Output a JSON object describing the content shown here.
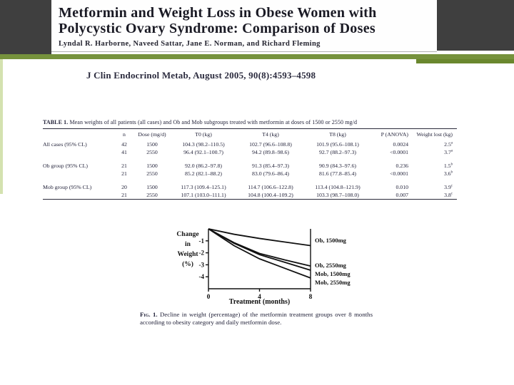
{
  "slide": {
    "header": {
      "title_line1": "Metformin and Weight Loss in Obese Women with",
      "title_line2": "Polycystic Ovary Syndrome: Comparison of Doses",
      "authors": "Lyndal R. Harborne, Naveed Sattar, Jane E. Norman, and Richard Fleming"
    },
    "citation": "J Clin Endocrinol Metab, August 2005, 90(8):4593–4598",
    "colors": {
      "accent_green": "#76923c",
      "accent_green_dark": "#6a872e",
      "accent_green_pale": "#d4e2b0",
      "header_gray": "#3f3f3f",
      "ink": "#23233a"
    }
  },
  "table": {
    "caption_lead": "TABLE 1.",
    "caption_text": "Mean weights of all patients (all cases) and Ob and Mob subgroups treated with metformin at doses of 1500 or 2550 mg/d",
    "columns": [
      "",
      "n",
      "Dose (mg/d)",
      "T0 (kg)",
      "T4 (kg)",
      "T8 (kg)",
      "P (ANOVA)",
      "Weight lost (kg)"
    ],
    "rows": [
      {
        "group_start": false,
        "cells": [
          "All cases (95% CL)",
          "42",
          "1500",
          "104.3 (98.2–110.5)",
          "102.7 (96.6–108.8)",
          "101.9 (95.6–108.1)",
          "0.0024",
          "2.5^a"
        ]
      },
      {
        "group_start": false,
        "cells": [
          "",
          "41",
          "2550",
          "96.4 (92.1–100.7)",
          "94.2 (89.8–98.6)",
          "92.7 (88.2–97.3)",
          "<0.0001",
          "3.7^a"
        ]
      },
      {
        "group_start": true,
        "cells": [
          "Ob group (95% CL)",
          "21",
          "1500",
          "92.0 (86.2–97.8)",
          "91.3 (85.4–97.3)",
          "90.9 (84.3–97.6)",
          "0.236",
          "1.5^b"
        ]
      },
      {
        "group_start": false,
        "cells": [
          "",
          "21",
          "2550",
          "85.2 (82.1–88.2)",
          "83.0 (79.6–86.4)",
          "81.6 (77.8–85.4)",
          "<0.0001",
          "3.6^b"
        ]
      },
      {
        "group_start": true,
        "cells": [
          "Mob group (95% CL)",
          "20",
          "1500",
          "117.3 (109.4–125.1)",
          "114.7 (106.6–122.8)",
          "113.4 (104.8–121.9)",
          "0.010",
          "3.9^c"
        ]
      },
      {
        "group_start": false,
        "cells": [
          "",
          "21",
          "2550",
          "107.1 (103.0–111.1)",
          "104.8 (100.4–109.2)",
          "103.3 (98.7–108.0)",
          "0.007",
          "3.8^c"
        ]
      }
    ]
  },
  "chart_data": {
    "type": "line",
    "title": "",
    "x": [
      0,
      2,
      4,
      6,
      8
    ],
    "series": [
      {
        "name": "Ob, 1500mg",
        "values": [
          0,
          -0.45,
          -0.8,
          -1.1,
          -1.4
        ]
      },
      {
        "name": "Ob, 2550mg",
        "values": [
          0,
          -1.15,
          -2.05,
          -2.6,
          -3.1
        ]
      },
      {
        "name": "Mob, 1500mg",
        "values": [
          0,
          -1.2,
          -2.15,
          -2.8,
          -3.45
        ]
      },
      {
        "name": "Mob, 2550mg",
        "values": [
          0,
          -1.4,
          -2.5,
          -3.3,
          -4.1
        ]
      }
    ],
    "ylabel_lines": [
      "Change",
      "in",
      "Weight",
      "(%)"
    ],
    "xlabel": "Treatment (months)",
    "yticks": [
      -1,
      -2,
      -3,
      -4
    ],
    "xticks": [
      0,
      4,
      8
    ],
    "xlim": [
      0,
      8
    ],
    "ylim": [
      -5,
      0
    ],
    "grid": false,
    "legend_position": "right",
    "line_color": "#111111"
  },
  "figure": {
    "caption_lead": "Fig. 1.",
    "caption_text": " Decline in weight (percentage) of the metformin treatment groups over 8 months according to obesity category and daily metformin dose."
  }
}
